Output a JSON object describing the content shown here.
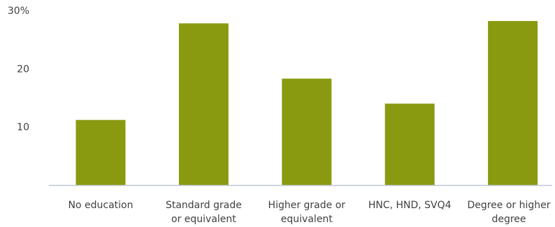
{
  "chart_data": {
    "type": "bar",
    "title": "",
    "xlabel": "",
    "ylabel": "",
    "categories": [
      [
        "No education"
      ],
      [
        "Standard grade",
        "or equivalent"
      ],
      [
        "Higher grade or",
        "equivalent"
      ],
      [
        "HNC, HND, SVQ4"
      ],
      [
        "Degree or higher",
        "degree"
      ]
    ],
    "values": [
      11.2,
      27.8,
      18.3,
      14.0,
      28.2
    ],
    "ylim": [
      0,
      30
    ],
    "yticks": [
      {
        "value": 10,
        "label": "10"
      },
      {
        "value": 20,
        "label": "20"
      },
      {
        "value": 30,
        "label": "30%"
      }
    ],
    "grid": false,
    "legend": "none",
    "colors": {
      "bar": "#8a9a10",
      "axis": "#bfc8d6",
      "text": "#404040"
    }
  }
}
